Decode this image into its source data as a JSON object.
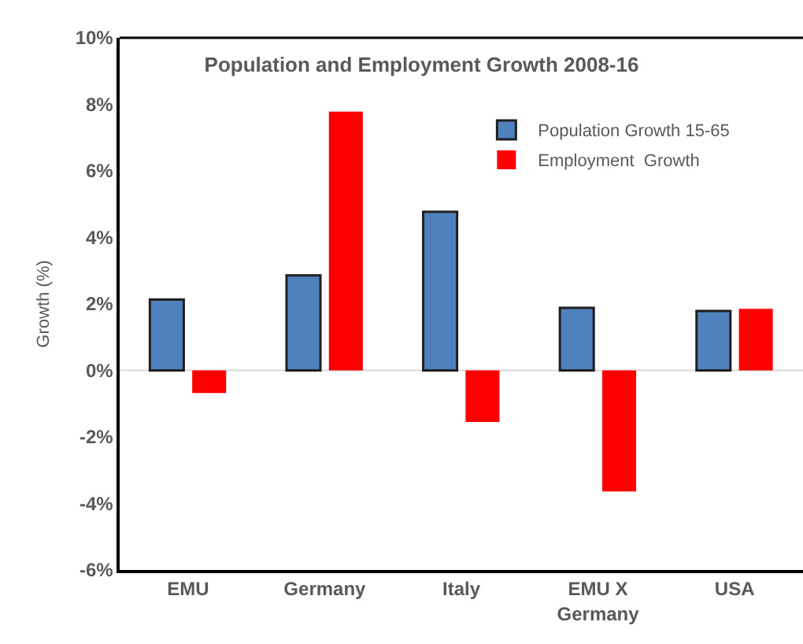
{
  "chart_data": {
    "type": "bar",
    "title": "Population and Employment Growth 2008-16",
    "ylabel": "Growth (%)",
    "categories": [
      "EMU",
      "Germany",
      "Italy",
      "EMU X Germany",
      "USA"
    ],
    "series": [
      {
        "name": "Population Growth 15-65",
        "color": "#4f81bd",
        "values": [
          2.13,
          2.86,
          4.77,
          1.88,
          1.79
        ]
      },
      {
        "name": "Employment  Growth",
        "color": "#ff0000",
        "values": [
          -0.68,
          7.78,
          -1.55,
          -3.64,
          1.85
        ]
      }
    ],
    "ylim": [
      -6,
      10
    ],
    "yticks": [
      {
        "value": -6,
        "label": "-6%"
      },
      {
        "value": -4,
        "label": "-4%"
      },
      {
        "value": -2,
        "label": "-2%"
      },
      {
        "value": 0,
        "label": "0%"
      },
      {
        "value": 2,
        "label": "2%"
      },
      {
        "value": 4,
        "label": "4%"
      },
      {
        "value": 6,
        "label": "6%"
      },
      {
        "value": 8,
        "label": "8%"
      },
      {
        "value": 10,
        "label": "10%"
      }
    ],
    "ref_lines": [
      {
        "axis": "y",
        "value": 0,
        "color": "#d9d9d9"
      }
    ],
    "grid": false,
    "legend": "top right"
  }
}
